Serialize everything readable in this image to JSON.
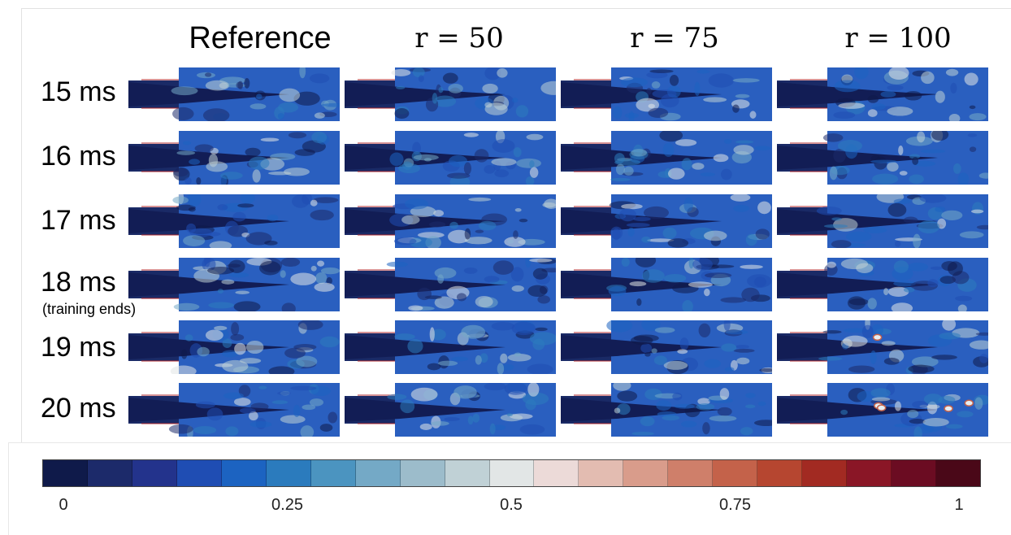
{
  "columns": [
    "Reference",
    "r = 50",
    "r = 75",
    "r = 100"
  ],
  "rows": [
    {
      "label": "15 ms",
      "sublabel": ""
    },
    {
      "label": "16 ms",
      "sublabel": ""
    },
    {
      "label": "17 ms",
      "sublabel": ""
    },
    {
      "label": "18 ms",
      "sublabel": "(training ends)"
    },
    {
      "label": "19 ms",
      "sublabel": ""
    },
    {
      "label": "20 ms",
      "sublabel": ""
    }
  ],
  "colorbar": {
    "ticks": [
      "0",
      "0.25",
      "0.5",
      "0.75",
      "1"
    ],
    "tick_values": [
      0,
      0.25,
      0.5,
      0.75,
      1
    ],
    "colors": [
      "#0f1a4a",
      "#1c2a6a",
      "#23338c",
      "#1f4db3",
      "#1c63c1",
      "#2b7bbd",
      "#4b94c0",
      "#74a9c6",
      "#9cbccb",
      "#c0d1d6",
      "#e2e6e6",
      "#ecdad8",
      "#e3bcb1",
      "#d99c8b",
      "#cf7f6a",
      "#c4624a",
      "#b64630",
      "#a22a22",
      "#8a1626",
      "#6b0c22",
      "#4a0818"
    ]
  }
}
